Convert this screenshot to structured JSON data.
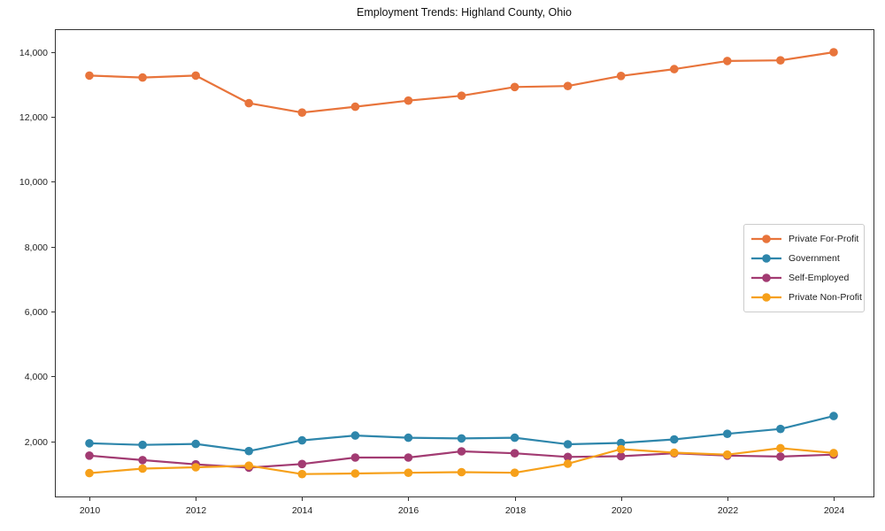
{
  "title": "Employment Trends: Highland County, Ohio",
  "axis_color": "#333333",
  "tick_label_color": "#222222",
  "chart_data": {
    "type": "line",
    "title": "Employment Trends: Highland County, Ohio",
    "xlabel": "",
    "ylabel": "",
    "x": [
      2010,
      2011,
      2012,
      2013,
      2014,
      2015,
      2016,
      2017,
      2018,
      2019,
      2020,
      2021,
      2022,
      2023,
      2024
    ],
    "series": [
      {
        "name": "Private For-Profit",
        "color": "#E8743B",
        "values": [
          13270,
          13210,
          13270,
          12420,
          12130,
          12310,
          12500,
          12650,
          12920,
          12950,
          13260,
          13470,
          13720,
          13740,
          13990
        ]
      },
      {
        "name": "Government",
        "color": "#2E86AB",
        "values": [
          1940,
          1890,
          1920,
          1700,
          2030,
          2180,
          2110,
          2090,
          2110,
          1910,
          1950,
          2060,
          2230,
          2380,
          2780
        ]
      },
      {
        "name": "Self-Employed",
        "color": "#A23B72",
        "values": [
          1560,
          1420,
          1290,
          1190,
          1300,
          1500,
          1500,
          1690,
          1630,
          1520,
          1540,
          1630,
          1560,
          1530,
          1590
        ]
      },
      {
        "name": "Private Non-Profit",
        "color": "#F6A01A",
        "values": [
          1020,
          1160,
          1200,
          1250,
          990,
          1010,
          1030,
          1050,
          1030,
          1310,
          1760,
          1650,
          1590,
          1790,
          1640
        ]
      }
    ],
    "xticks": [
      2010,
      2012,
      2014,
      2016,
      2018,
      2020,
      2022,
      2024
    ],
    "yticks": [
      2000,
      4000,
      6000,
      8000,
      10000,
      12000,
      14000
    ],
    "xlim": [
      2009.35,
      2024.75
    ],
    "ylim": [
      300,
      14700
    ],
    "grid": false,
    "legend_position": "center-right"
  }
}
